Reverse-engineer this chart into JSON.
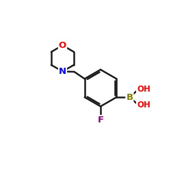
{
  "bg_color": "#ffffff",
  "bond_color": "#1a1a1a",
  "atom_colors": {
    "O": "#ff0000",
    "N": "#0000ff",
    "F": "#800080",
    "B": "#808000",
    "OH": "#ff0000"
  },
  "figsize": [
    2.5,
    2.5
  ],
  "dpi": 100
}
